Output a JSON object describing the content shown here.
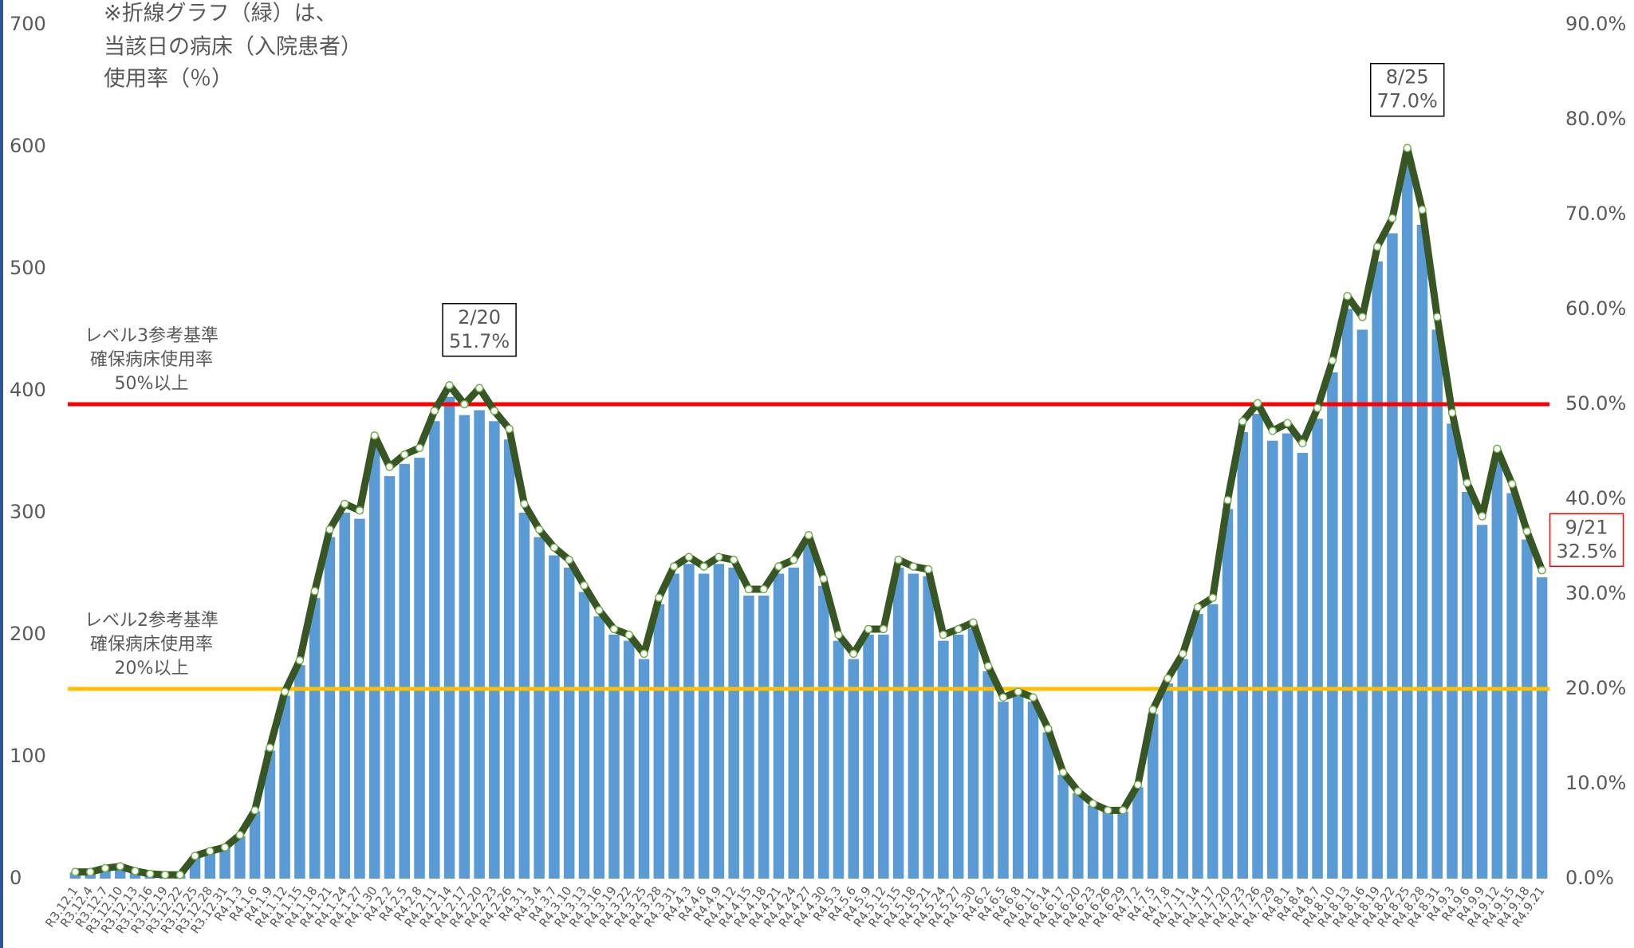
{
  "chart_data": {
    "type": "bar_line",
    "note": [
      "※折線グラフ（緑）は、",
      "当該日の病床（入院患者）",
      "使用率（％）"
    ],
    "categories": [
      "R3.12.1",
      "R3.12.4",
      "R3.12.7",
      "R3.12.10",
      "R3.12.13",
      "R3.12.16",
      "R3.12.19",
      "R3.12.22",
      "R3.12.25",
      "R3.12.28",
      "R3.12.31",
      "R4.1.3",
      "R4.1.6",
      "R4.1.9",
      "R4.1.12",
      "R4.1.15",
      "R4.1.18",
      "R4.1.21",
      "R4.1.24",
      "R4.1.27",
      "R4.1.30",
      "R4.2.2",
      "R4.2.5",
      "R4.2.8",
      "R4.2.11",
      "R4.2.14",
      "R4.2.17",
      "R4.2.20",
      "R4.2.23",
      "R4.2.26",
      "R4.3.1",
      "R4.3.4",
      "R4.3.7",
      "R4.3.10",
      "R4.3.13",
      "R4.3.16",
      "R4.3.19",
      "R4.3.22",
      "R4.3.25",
      "R4.3.28",
      "R4.3.31",
      "R4.4.3",
      "R4.4.6",
      "R4.4.9",
      "R4.4.12",
      "R4.4.15",
      "R4.4.18",
      "R4.4.21",
      "R4.4.24",
      "R4.4.27",
      "R4.4.30",
      "R4.5.3",
      "R4.5.6",
      "R4.5.9",
      "R4.5.12",
      "R4.5.15",
      "R4.5.18",
      "R4.5.21",
      "R4.5.24",
      "R4.5.27",
      "R4.5.30",
      "R4.6.2",
      "R4.6.5",
      "R4.6.8",
      "R4.6.11",
      "R4.6.14",
      "R4.6.17",
      "R4.6.20",
      "R4.6.23",
      "R4.6.26",
      "R4.6.29",
      "R4.7.2",
      "R4.7.5",
      "R4.7.8",
      "R4.7.11",
      "R4.7.14",
      "R4.7.17",
      "R4.7.20",
      "R4.7.23",
      "R4.7.26",
      "R4.7.29",
      "R4.8.1",
      "R4.8.4",
      "R4.8.7",
      "R4.8.10",
      "R4.8.13",
      "R4.8.16",
      "R4.8.19",
      "R4.8.22",
      "R4.8.25",
      "R4.8.28",
      "R4.8.31",
      "R4.9.3",
      "R4.9.6",
      "R4.9.9",
      "R4.9.12",
      "R4.9.15",
      "R4.9.18",
      "R4.9.21"
    ],
    "series": [
      {
        "color": "#5b9bd5",
        "values": [
          5,
          5,
          8,
          10,
          6,
          4,
          3,
          3,
          18,
          22,
          25,
          35,
          55,
          105,
          150,
          175,
          230,
          280,
          300,
          295,
          355,
          330,
          340,
          345,
          375,
          395,
          380,
          384,
          375,
          360,
          300,
          280,
          265,
          255,
          235,
          215,
          200,
          195,
          180,
          225,
          250,
          258,
          250,
          258,
          255,
          232,
          232,
          250,
          255,
          275,
          240,
          195,
          180,
          200,
          200,
          255,
          250,
          248,
          195,
          200,
          205,
          170,
          145,
          150,
          145,
          120,
          85,
          70,
          60,
          55,
          55,
          75,
          135,
          160,
          180,
          217,
          225,
          303,
          366,
          381,
          359,
          365,
          349,
          377,
          415,
          467,
          450,
          506,
          529,
          586,
          536,
          450,
          373,
          317,
          290,
          344,
          316,
          278,
          247
        ]
      },
      {
        "color": "#375623",
        "axis": "y2",
        "values": [
          0.7,
          0.7,
          1.1,
          1.3,
          0.8,
          0.5,
          0.4,
          0.4,
          2.4,
          2.9,
          3.3,
          4.6,
          7.2,
          13.8,
          19.7,
          23.0,
          30.3,
          36.8,
          39.5,
          38.8,
          46.7,
          43.4,
          44.7,
          45.4,
          49.3,
          52.0,
          50.0,
          51.7,
          49.3,
          47.4,
          39.5,
          36.8,
          34.9,
          33.6,
          30.9,
          28.3,
          26.3,
          25.7,
          23.7,
          29.6,
          32.9,
          33.9,
          32.9,
          33.9,
          33.6,
          30.5,
          30.5,
          32.9,
          33.6,
          36.2,
          31.6,
          25.7,
          23.7,
          26.3,
          26.3,
          33.6,
          32.9,
          32.6,
          25.7,
          26.3,
          27.0,
          22.4,
          19.1,
          19.7,
          19.1,
          15.8,
          11.2,
          9.2,
          7.9,
          7.2,
          7.2,
          9.9,
          17.8,
          21.1,
          23.7,
          28.6,
          29.6,
          39.9,
          48.2,
          50.1,
          47.2,
          48.0,
          45.9,
          49.6,
          54.6,
          61.4,
          59.2,
          66.6,
          69.6,
          77.0,
          70.5,
          59.2,
          49.1,
          41.7,
          38.2,
          45.3,
          41.6,
          36.6,
          32.5
        ]
      }
    ],
    "ylim": [
      0,
      700
    ],
    "yticks": [
      0,
      100,
      200,
      300,
      400,
      500,
      600,
      700
    ],
    "y2lim": [
      0,
      90
    ],
    "y2ticks": [
      {
        "value": 0,
        "label": "0.0%"
      },
      {
        "value": 10,
        "label": "10.0%"
      },
      {
        "value": 20,
        "label": "20.0%"
      },
      {
        "value": 30,
        "label": "30.0%"
      },
      {
        "value": 40,
        "label": "40.0%"
      },
      {
        "value": 50,
        "label": "50.0%"
      },
      {
        "value": 60,
        "label": "60.0%"
      },
      {
        "value": 70,
        "label": "70.0%"
      },
      {
        "value": 80,
        "label": "80.0%"
      },
      {
        "value": 90,
        "label": "90.0%"
      }
    ],
    "ref_lines": [
      {
        "value": 50,
        "color": "#ff0000",
        "label": [
          "レベル3参考基準",
          "確保病床使用率",
          "50%以上"
        ]
      },
      {
        "value": 20,
        "color": "#ffc000",
        "label": [
          "レベル2参考基準",
          "確保病床使用率",
          "20%以上"
        ]
      }
    ],
    "annotations": [
      {
        "category": "R4.2.20",
        "side": "top",
        "color": "#000000",
        "lines": [
          "2/20",
          "51.7%"
        ]
      },
      {
        "category": "R4.8.25",
        "side": "top",
        "color": "#000000",
        "lines": [
          "8/25",
          "77.0%"
        ]
      },
      {
        "category": "R4.9.21",
        "side": "right",
        "color": "#ff0000",
        "lines": [
          "9/21",
          "32.5%"
        ]
      }
    ]
  }
}
